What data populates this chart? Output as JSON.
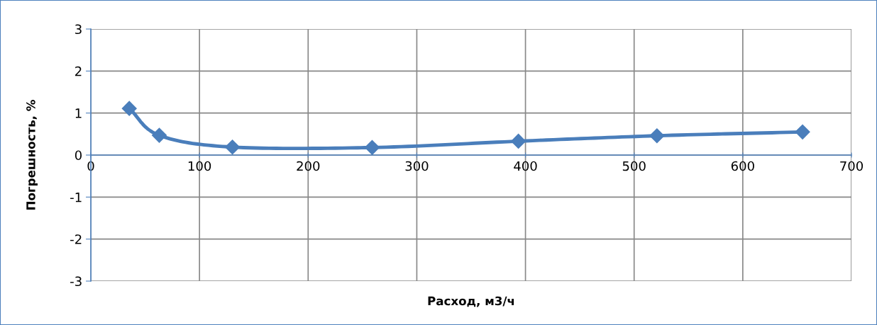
{
  "chart_data": {
    "type": "line",
    "xlabel": "Расход, м3/ч",
    "ylabel": "Погрешность, %",
    "series": [
      {
        "color": "#4a7ebb",
        "x": [
          35.4,
          63,
          130.3,
          258.9,
          393.5,
          521,
          655
        ],
        "values": [
          1.11,
          0.47,
          0.19,
          0.18,
          0.33,
          0.46,
          0.55
        ]
      }
    ],
    "xlim": [
      0,
      700
    ],
    "xticks": [
      0,
      100,
      200,
      300,
      400,
      500,
      600,
      700
    ],
    "ylim": [
      -3,
      3
    ],
    "yticks": [
      -3,
      -2,
      -1,
      0,
      1,
      2,
      3
    ],
    "grid": true,
    "marker": "diamond",
    "line_style": "solid",
    "legend": false
  }
}
